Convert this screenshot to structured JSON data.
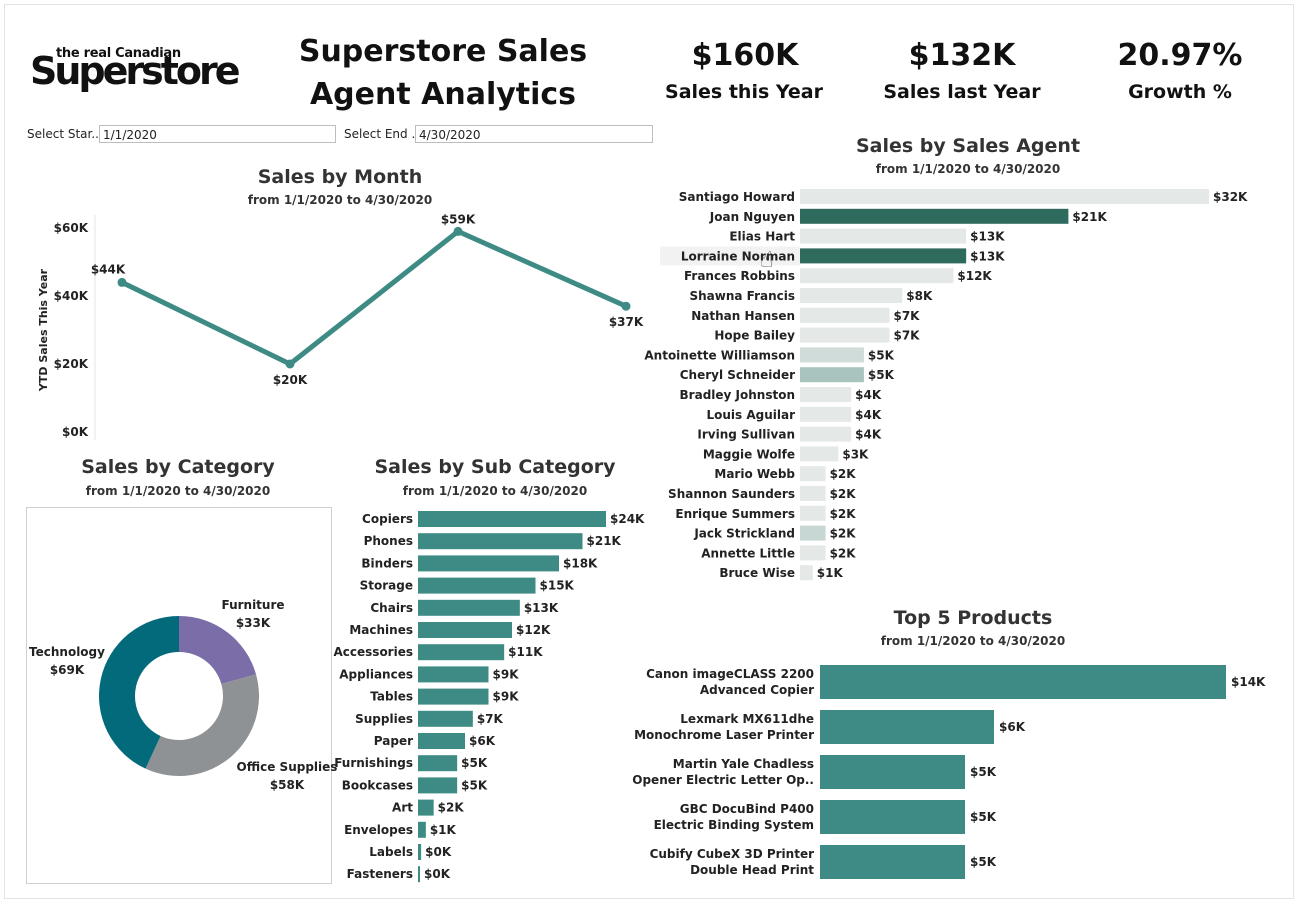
{
  "logo": {
    "small": "the real Canadian",
    "big": "Superstore"
  },
  "title": "Superstore Sales Agent Analytics",
  "kpis": [
    {
      "value": "$160K",
      "label": "Sales this Year"
    },
    {
      "value": "$132K",
      "label": "Sales last Year"
    },
    {
      "value": "20.97%",
      "label": "Growth %"
    }
  ],
  "filters": {
    "start_label": "Select Star...",
    "start_value": "1/1/2020",
    "end_label": "Select End ...",
    "end_value": "4/30/2020"
  },
  "colors": {
    "teal": "#3d8b84",
    "agent_highlight": "#2e6b5e",
    "agent_light": "#e4e8e7",
    "purple": "#7b6ea8",
    "gray": "#8e9294",
    "dark_teal": "#036a7c"
  },
  "chart_data": [
    {
      "id": "month",
      "type": "line",
      "title": "Sales by Month",
      "subtitle": "from 1/1/2020 to 4/30/2020",
      "ylabel": "YTD Sales This Year",
      "y_ticks": [
        "$60K",
        "$40K",
        "$20K",
        "$0K"
      ],
      "ylim": [
        0,
        60
      ],
      "values": [
        44,
        20,
        59,
        37
      ],
      "labels": [
        "$44K",
        "$20K",
        "$59K",
        "$37K"
      ]
    },
    {
      "id": "category",
      "type": "pie",
      "title": "Sales by Category",
      "subtitle": "from 1/1/2020 to 4/30/2020",
      "slices": [
        {
          "name": "Furniture",
          "label": "$33K",
          "value": 33,
          "color": "#7b6ea8"
        },
        {
          "name": "Office Supplies",
          "label": "$58K",
          "value": 58,
          "color": "#8e9294"
        },
        {
          "name": "Technology",
          "label": "$69K",
          "value": 69,
          "color": "#036a7c"
        }
      ]
    },
    {
      "id": "subcategory",
      "type": "bar",
      "title": "Sales by Sub Category",
      "subtitle": "from 1/1/2020 to 4/30/2020",
      "categories": [
        "Copiers",
        "Phones",
        "Binders",
        "Storage",
        "Chairs",
        "Machines",
        "Accessories",
        "Appliances",
        "Tables",
        "Supplies",
        "Paper",
        "Furnishings",
        "Bookcases",
        "Art",
        "Envelopes",
        "Labels",
        "Fasteners"
      ],
      "values": [
        24,
        21,
        18,
        15,
        13,
        12,
        11,
        9,
        9,
        7,
        6,
        5,
        5,
        2,
        1,
        0.4,
        0.2
      ],
      "labels": [
        "$24K",
        "$21K",
        "$18K",
        "$15K",
        "$13K",
        "$12K",
        "$11K",
        "$9K",
        "$9K",
        "$7K",
        "$6K",
        "$5K",
        "$5K",
        "$2K",
        "$1K",
        "$0K",
        "$0K"
      ]
    },
    {
      "id": "agent",
      "type": "bar",
      "title": "Sales by Sales Agent",
      "subtitle": "from 1/1/2020 to 4/30/2020",
      "categories": [
        "Santiago Howard",
        "Joan Nguyen",
        "Elias Hart",
        "Lorraine Norman",
        "Frances Robbins",
        "Shawna Francis",
        "Nathan Hansen",
        "Hope Bailey",
        "Antoinette Williamson",
        "Cheryl Schneider",
        "Bradley Johnston",
        "Louis Aguilar",
        "Irving Sullivan",
        "Maggie Wolfe",
        "Mario Webb",
        "Shannon Saunders",
        "Enrique Summers",
        "Jack Strickland",
        "Annette Little",
        "Bruce Wise"
      ],
      "values": [
        32,
        21,
        13,
        13,
        12,
        8,
        7,
        7,
        5,
        5,
        4,
        4,
        4,
        3,
        2,
        2,
        2,
        2,
        2,
        1
      ],
      "labels": [
        "$32K",
        "$21K",
        "$13K",
        "$13K",
        "$12K",
        "$8K",
        "$7K",
        "$7K",
        "$5K",
        "$5K",
        "$4K",
        "$4K",
        "$4K",
        "$3K",
        "$2K",
        "$2K",
        "$2K",
        "$2K",
        "$2K",
        "$1K"
      ],
      "colors": [
        "#e4e8e7",
        "#2e6b5e",
        "#e4e8e7",
        "#2e6b5e",
        "#e4e8e7",
        "#e4e8e7",
        "#e4e8e7",
        "#e4e8e7",
        "#d0dcd9",
        "#a9c4bf",
        "#e4e8e7",
        "#e4e8e7",
        "#e4e8e7",
        "#e4e8e7",
        "#e4e8e7",
        "#e4e8e7",
        "#e4e8e7",
        "#c7d8d4",
        "#e4e8e7",
        "#e4e8e7"
      ]
    },
    {
      "id": "products",
      "type": "bar",
      "title": "Top 5 Products",
      "subtitle": "from 1/1/2020 to 4/30/2020",
      "categories": [
        [
          "Canon imageCLASS 2200",
          "Advanced Copier"
        ],
        [
          "Lexmark MX611dhe",
          "Monochrome Laser Printer"
        ],
        [
          "Martin Yale Chadless",
          "Opener Electric Letter Op.."
        ],
        [
          "GBC DocuBind P400",
          "Electric Binding System"
        ],
        [
          "Cubify CubeX 3D Printer",
          "Double Head Print"
        ]
      ],
      "values": [
        14,
        6,
        5,
        5,
        5
      ],
      "labels": [
        "$14K",
        "$6K",
        "$5K",
        "$5K",
        "$5K"
      ]
    }
  ]
}
